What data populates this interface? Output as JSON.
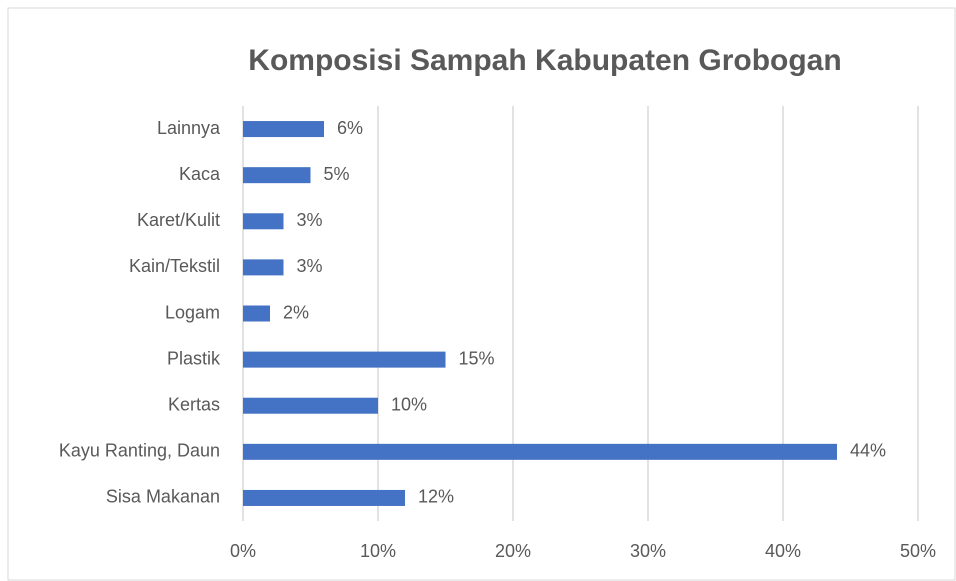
{
  "chart_data": {
    "type": "bar",
    "orientation": "horizontal",
    "title": "Komposisi Sampah Kabupaten Grobogan",
    "categories": [
      "Lainnya",
      "Kaca",
      "Karet/Kulit",
      "Kain/Tekstil",
      "Logam",
      "Plastik",
      "Kertas",
      "Kayu Ranting, Daun",
      "Sisa Makanan"
    ],
    "values": [
      6,
      5,
      3,
      3,
      2,
      15,
      10,
      44,
      12
    ],
    "value_labels": [
      "6%",
      "5%",
      "3%",
      "3%",
      "2%",
      "15%",
      "10%",
      "44%",
      "12%"
    ],
    "color": "#4472c4",
    "xlim": [
      0,
      50
    ],
    "xticks": [
      {
        "value": 0,
        "label": "0%"
      },
      {
        "value": 10,
        "label": "10%"
      },
      {
        "value": 20,
        "label": "20%"
      },
      {
        "value": 30,
        "label": "30%"
      },
      {
        "value": 40,
        "label": "40%"
      },
      {
        "value": 50,
        "label": "50%"
      }
    ],
    "grid": true
  }
}
